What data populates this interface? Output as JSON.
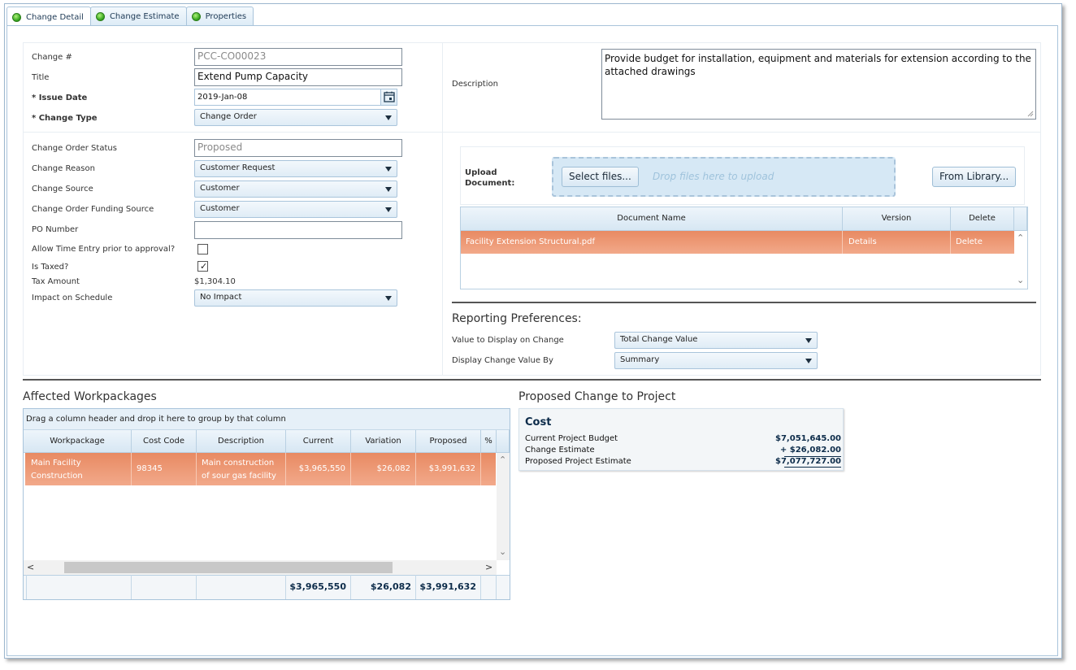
{
  "tabs": [
    {
      "label": "Change Detail"
    },
    {
      "label": "Change Estimate"
    },
    {
      "label": "Properties"
    }
  ],
  "form": {
    "change_no_label": "Change #",
    "change_no_value": "PCC-CO00023",
    "title_label": "Title",
    "title_value": "Extend Pump Capacity",
    "issue_date_label": "* Issue Date",
    "issue_date_value": "2019-Jan-08",
    "change_type_label": "* Change Type",
    "change_type_value": "Change Order",
    "description_label": "Description",
    "description_value": "Provide budget for installation, equipment and materials for extension according to the attached drawings",
    "status_label": "Change Order Status",
    "status_value": "Proposed",
    "reason_label": "Change Reason",
    "reason_value": "Customer Request",
    "source_label": "Change Source",
    "source_value": "Customer",
    "funding_label": "Change Order Funding Source",
    "funding_value": "Customer",
    "po_label": "PO Number",
    "po_value": "",
    "allow_time_label": "Allow Time Entry prior to approval?",
    "allow_time_checked": false,
    "taxed_label": "Is Taxed?",
    "taxed_checked": true,
    "tax_amount_label": "Tax Amount",
    "tax_amount_value": "$1,304.10",
    "impact_label": "Impact on Schedule",
    "impact_value": "No Impact"
  },
  "upload": {
    "label": "Upload Document:",
    "select_button": "Select files...",
    "drop_hint": "Drop files here to upload",
    "library_button": "From Library...",
    "columns": [
      "Document Name",
      "Version",
      "Delete"
    ],
    "rows": [
      {
        "name": "Facility Extension Structural.pdf",
        "version": "Details",
        "delete": "Delete"
      }
    ]
  },
  "reporting": {
    "title": "Reporting Preferences:",
    "value_label": "Value to Display on Change",
    "value_value": "Total Change Value",
    "display_label": "Display Change Value By",
    "display_value": "Summary"
  },
  "workpackages": {
    "title": "Affected Workpackages",
    "group_hint": "Drag a column header and drop it here to group by that column",
    "columns": [
      "Workpackage",
      "Cost Code",
      "Description",
      "Current",
      "Variation",
      "Proposed",
      "%"
    ],
    "rows": [
      {
        "workpackage": "Main Facility Construction",
        "cost_code": "98345",
        "description": "Main construction of sour gas facility",
        "current": "$3,965,550",
        "variation": "$26,082",
        "proposed": "$3,991,632"
      }
    ],
    "totals": {
      "current": "$3,965,550",
      "variation": "$26,082",
      "proposed": "$3,991,632"
    }
  },
  "proposed_change": {
    "title": "Proposed Change to Project",
    "heading": "Cost",
    "lines": [
      {
        "label": "Current Project Budget",
        "value": "$7,051,645.00"
      },
      {
        "label": "Change Estimate",
        "value": "+ $26,082.00"
      },
      {
        "label": "Proposed Project Estimate",
        "value": "$7,077,727.00"
      }
    ]
  }
}
